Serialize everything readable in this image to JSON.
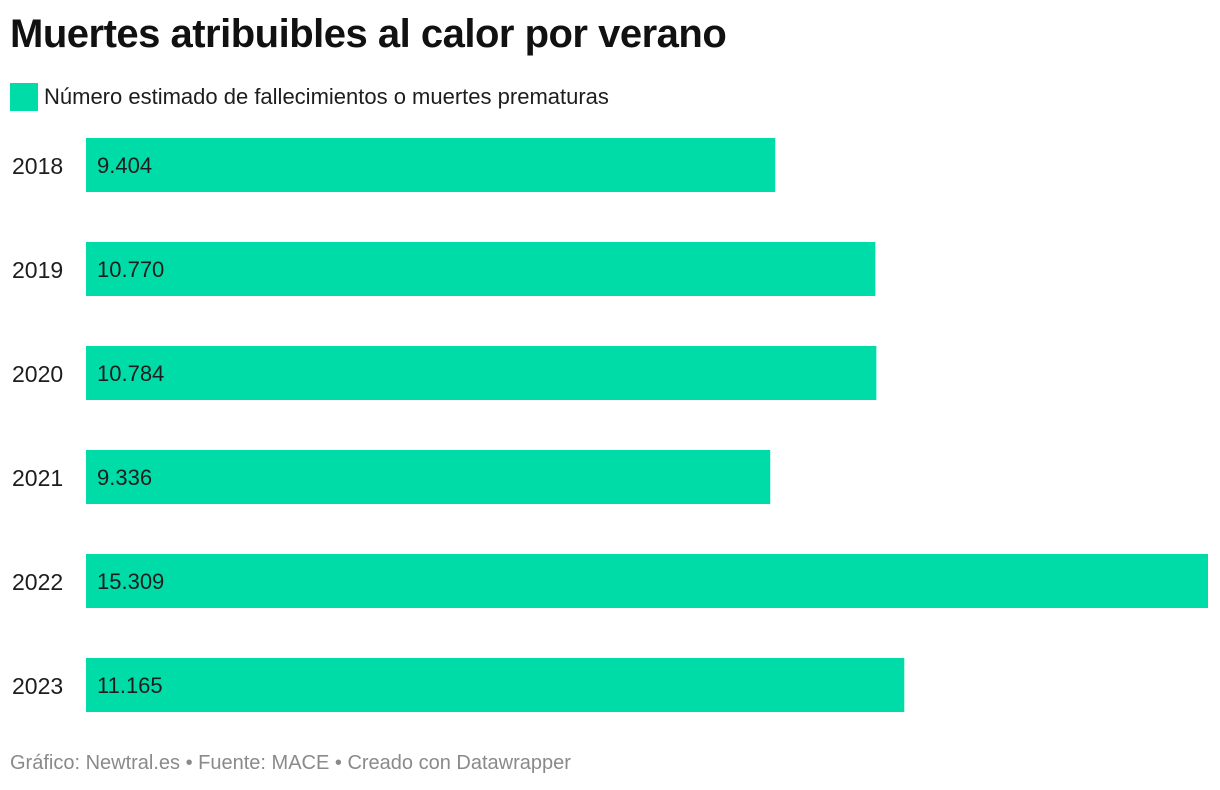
{
  "title": "Muertes atribuibles al calor por verano",
  "legend": {
    "label": "Número estimado de fallecimientos o muertes prematuras",
    "color": "#00dca8"
  },
  "footer": {
    "text": "Gráfico: Newtral.es • Fuente: MACE • Creado con Datawrapper"
  },
  "colors": {
    "bar": "#00dca8",
    "label": "#1d1d1d",
    "value_label": "#1d1d1d"
  },
  "chart_data": {
    "type": "bar",
    "orientation": "horizontal",
    "title": "Muertes atribuibles al calor por verano",
    "categories": [
      "2018",
      "2019",
      "2020",
      "2021",
      "2022",
      "2023"
    ],
    "series": [
      {
        "name": "Número estimado de fallecimientos o muertes prematuras",
        "values": [
          9404,
          10770,
          10784,
          9336,
          15309,
          11165
        ],
        "labels": [
          "9.404",
          "10.770",
          "10.784",
          "9.336",
          "15.309",
          "11.165"
        ]
      }
    ],
    "xlim": [
      0,
      15309
    ],
    "grid": false,
    "legend_position": "top-left"
  }
}
